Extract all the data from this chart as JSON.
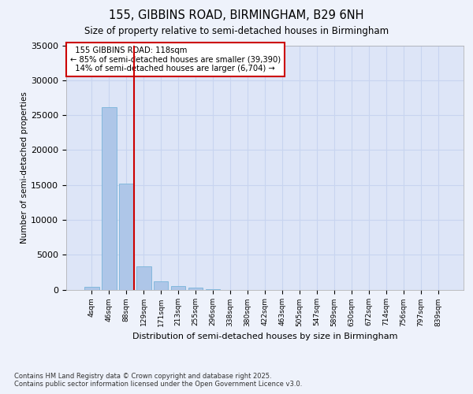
{
  "title1": "155, GIBBINS ROAD, BIRMINGHAM, B29 6NH",
  "title2": "Size of property relative to semi-detached houses in Birmingham",
  "xlabel": "Distribution of semi-detached houses by size in Birmingham",
  "ylabel": "Number of semi-detached properties",
  "footnote": "Contains HM Land Registry data © Crown copyright and database right 2025.\nContains public sector information licensed under the Open Government Licence v3.0.",
  "categories": [
    "4sqm",
    "46sqm",
    "88sqm",
    "129sqm",
    "171sqm",
    "213sqm",
    "255sqm",
    "296sqm",
    "338sqm",
    "380sqm",
    "422sqm",
    "463sqm",
    "505sqm",
    "547sqm",
    "589sqm",
    "630sqm",
    "672sqm",
    "714sqm",
    "756sqm",
    "797sqm",
    "839sqm"
  ],
  "values": [
    400,
    26100,
    15200,
    3300,
    1200,
    500,
    250,
    100,
    0,
    0,
    0,
    0,
    0,
    0,
    0,
    0,
    0,
    0,
    0,
    0,
    0
  ],
  "bar_color": "#aec6e8",
  "bar_edge_color": "#6aaed6",
  "property_label": "155 GIBBINS ROAD: 118sqm",
  "pct_smaller": 85,
  "count_smaller": 39390,
  "pct_larger": 14,
  "count_larger": 6704,
  "vline_color": "#cc0000",
  "vline_x_index": 2.425,
  "annotation_box_color": "#cc0000",
  "bg_color": "#eef2fb",
  "plot_bg_color": "#dde5f7",
  "grid_color": "#c8d4f0",
  "ylim": [
    0,
    35000
  ],
  "yticks": [
    0,
    5000,
    10000,
    15000,
    20000,
    25000,
    30000,
    35000
  ]
}
